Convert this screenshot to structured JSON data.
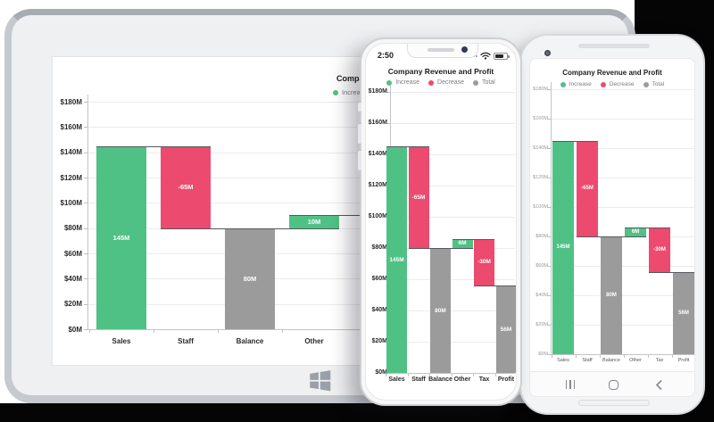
{
  "canvas": {
    "background_color": "#050505",
    "panel_color": "#ffffff"
  },
  "colors": {
    "increase": "#50C185",
    "decrease": "#EC4A6E",
    "total": "#9B9B9B"
  },
  "tablet": {
    "os": "windows",
    "home_button": "windows-logo"
  },
  "iphone": {
    "status_time": "2:50",
    "status_icons": [
      "cellular-dots",
      "wifi",
      "battery"
    ]
  },
  "android": {
    "nav_buttons": [
      "recents",
      "home",
      "back"
    ]
  },
  "chart_data": [
    {
      "device": "tablet",
      "type": "bar",
      "variant": "waterfall",
      "title": "Company Revenue and Profit",
      "legend": [
        "Increase",
        "Decrease",
        "Total"
      ],
      "legend_position": "top-center",
      "grid": "horizontal",
      "ylim": [
        0,
        180
      ],
      "ylabel_ticks": [
        "$0M",
        "$20M",
        "$40M",
        "$60M",
        "$80M",
        "$100M",
        "$120M",
        "$140M",
        "$160M",
        "$180M"
      ],
      "categories": [
        "Sales",
        "Staff",
        "Balance",
        "Other"
      ],
      "steps": [
        {
          "category": "Sales",
          "kind": "increase",
          "value": 145,
          "label": "145M"
        },
        {
          "category": "Staff",
          "kind": "decrease",
          "value": -65,
          "label": "-65M"
        },
        {
          "category": "Balance",
          "kind": "total",
          "value": 80,
          "label": "80M"
        },
        {
          "category": "Other",
          "kind": "increase",
          "value": 10,
          "label": "10M"
        }
      ]
    },
    {
      "device": "iphone",
      "type": "bar",
      "variant": "waterfall",
      "title": "Company Revenue and Profit",
      "legend": [
        "Increase",
        "Decrease",
        "Total"
      ],
      "legend_position": "top-center",
      "grid": "horizontal",
      "ylim": [
        0,
        180
      ],
      "ylabel_ticks": [
        "$0M",
        "$20M",
        "$40M",
        "$60M",
        "$80M",
        "$100M",
        "$120M",
        "$140M",
        "$160M",
        "$180M"
      ],
      "categories": [
        "Sales",
        "Staff",
        "Balance",
        "Other",
        "Tax",
        "Profit"
      ],
      "steps": [
        {
          "category": "Sales",
          "kind": "increase",
          "value": 145,
          "label": "145M"
        },
        {
          "category": "Staff",
          "kind": "decrease",
          "value": -65,
          "label": "-65M"
        },
        {
          "category": "Balance",
          "kind": "total",
          "value": 80,
          "label": "80M"
        },
        {
          "category": "Other",
          "kind": "increase",
          "value": 6,
          "label": "6M"
        },
        {
          "category": "Tax",
          "kind": "decrease",
          "value": -30,
          "label": "-30M"
        },
        {
          "category": "Profit",
          "kind": "total",
          "value": 56,
          "label": "56M"
        }
      ]
    },
    {
      "device": "android",
      "type": "bar",
      "variant": "waterfall",
      "title": "Company Revenue and Profit",
      "legend": [
        "Increase",
        "Decrease",
        "Total"
      ],
      "legend_position": "top-center",
      "grid": "horizontal",
      "ylim": [
        0,
        180
      ],
      "ylabel_ticks": [
        "$0M",
        "$20M",
        "$40M",
        "$60M",
        "$80M",
        "$100M",
        "$120M",
        "$140M",
        "$160M",
        "$180M"
      ],
      "categories": [
        "Sales",
        "Staff",
        "Balance",
        "Other",
        "Tax",
        "Profit"
      ],
      "steps": [
        {
          "category": "Sales",
          "kind": "increase",
          "value": 145,
          "label": "145M"
        },
        {
          "category": "Staff",
          "kind": "decrease",
          "value": -65,
          "label": "-65M"
        },
        {
          "category": "Balance",
          "kind": "total",
          "value": 80,
          "label": "80M"
        },
        {
          "category": "Other",
          "kind": "increase",
          "value": 6,
          "label": "6M"
        },
        {
          "category": "Tax",
          "kind": "decrease",
          "value": -30,
          "label": "-30M"
        },
        {
          "category": "Profit",
          "kind": "total",
          "value": 56,
          "label": "56M"
        }
      ]
    }
  ]
}
